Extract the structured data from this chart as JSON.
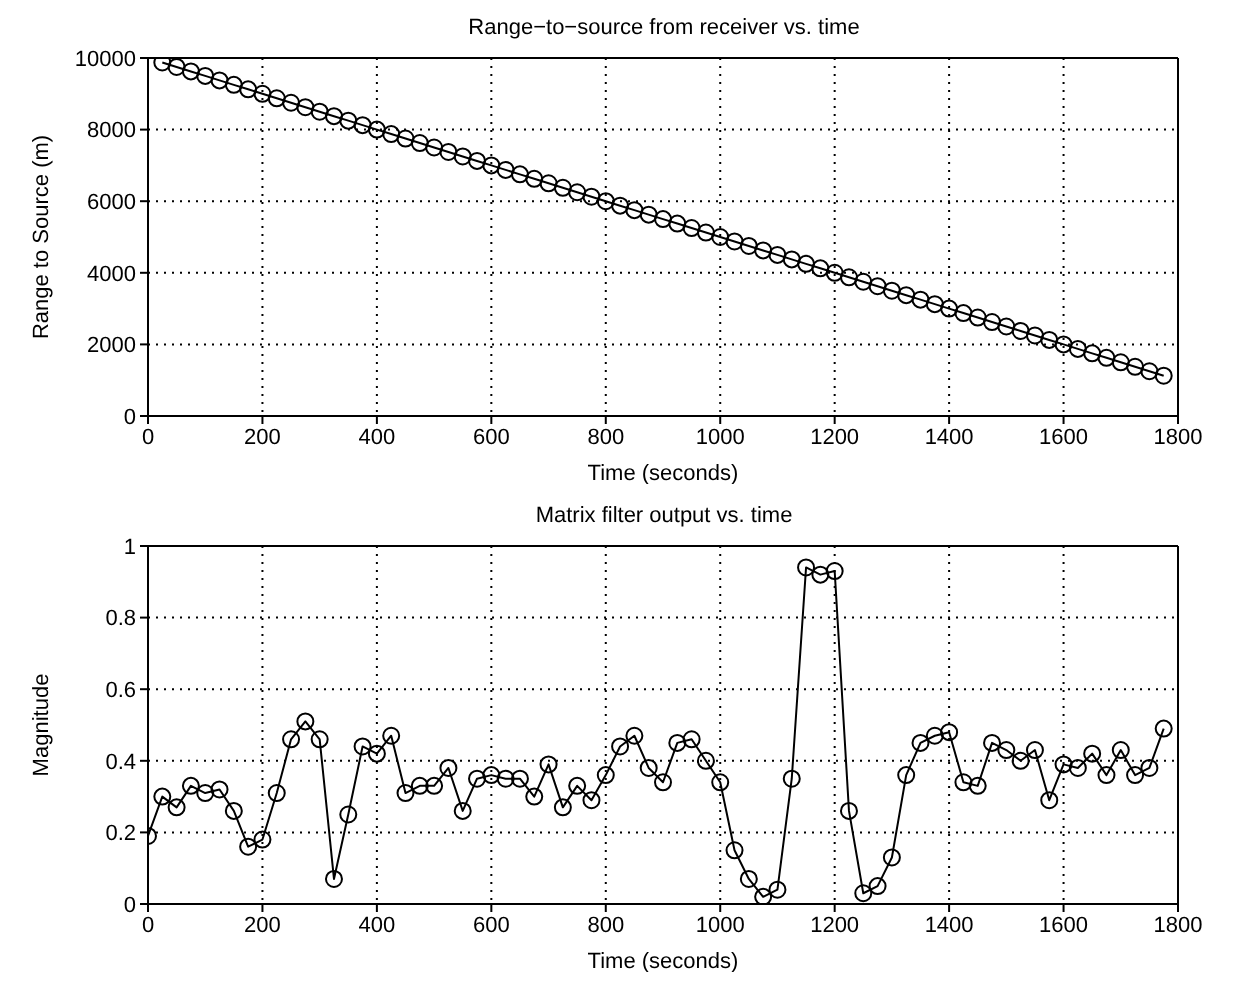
{
  "chart_data": [
    {
      "type": "line",
      "title": "Range−to−source from receiver vs. time",
      "xlabel": "Time (seconds)",
      "ylabel": "Range to Source (m)",
      "x": [
        25,
        50,
        75,
        100,
        125,
        150,
        175,
        200,
        225,
        250,
        275,
        300,
        325,
        350,
        375,
        400,
        425,
        450,
        475,
        500,
        525,
        550,
        575,
        600,
        625,
        650,
        675,
        700,
        725,
        750,
        775,
        800,
        825,
        850,
        875,
        900,
        925,
        950,
        975,
        1000,
        1025,
        1050,
        1075,
        1100,
        1125,
        1150,
        1175,
        1200,
        1225,
        1250,
        1275,
        1300,
        1325,
        1350,
        1375,
        1400,
        1425,
        1450,
        1475,
        1500,
        1525,
        1550,
        1575,
        1600,
        1625,
        1650,
        1675,
        1700,
        1725,
        1750,
        1775
      ],
      "series": [
        {
          "color": "#000000",
          "values": [
            9875,
            9750,
            9625,
            9500,
            9375,
            9250,
            9125,
            9000,
            8875,
            8750,
            8625,
            8500,
            8375,
            8250,
            8125,
            8000,
            7875,
            7750,
            7625,
            7500,
            7375,
            7250,
            7125,
            7000,
            6875,
            6750,
            6625,
            6500,
            6375,
            6250,
            6125,
            6000,
            5875,
            5750,
            5625,
            5500,
            5375,
            5250,
            5125,
            5000,
            4875,
            4750,
            4625,
            4500,
            4375,
            4250,
            4125,
            4000,
            3875,
            3750,
            3625,
            3500,
            3375,
            3250,
            3125,
            3000,
            2875,
            2750,
            2625,
            2500,
            2375,
            2250,
            2125,
            2000,
            1875,
            1750,
            1625,
            1500,
            1375,
            1250,
            1125
          ]
        }
      ],
      "xlim": [
        0,
        1800
      ],
      "xticks": [
        0,
        200,
        400,
        600,
        800,
        1000,
        1200,
        1400,
        1600,
        1800
      ],
      "ylim": [
        0,
        10000
      ],
      "yticks": [
        0,
        2000,
        4000,
        6000,
        8000,
        10000
      ],
      "grid": true,
      "marker": "circle",
      "line_style": "solid"
    },
    {
      "type": "line",
      "title": "Matrix filter output vs. time",
      "xlabel": "Time (seconds)",
      "ylabel": "Magnitude",
      "x": [
        0,
        25,
        50,
        75,
        100,
        125,
        150,
        175,
        200,
        225,
        250,
        275,
        300,
        325,
        350,
        375,
        400,
        425,
        450,
        475,
        500,
        525,
        550,
        575,
        600,
        625,
        650,
        675,
        700,
        725,
        750,
        775,
        800,
        825,
        850,
        875,
        900,
        925,
        950,
        975,
        1000,
        1025,
        1050,
        1075,
        1100,
        1125,
        1150,
        1175,
        1200,
        1225,
        1250,
        1275,
        1300,
        1325,
        1350,
        1375,
        1400,
        1425,
        1450,
        1475,
        1500,
        1525,
        1550,
        1575,
        1600,
        1625,
        1650,
        1675,
        1700,
        1725,
        1750,
        1775
      ],
      "series": [
        {
          "color": "#000000",
          "values": [
            0.19,
            0.3,
            0.27,
            0.33,
            0.31,
            0.32,
            0.26,
            0.16,
            0.18,
            0.31,
            0.46,
            0.51,
            0.46,
            0.07,
            0.25,
            0.44,
            0.42,
            0.47,
            0.31,
            0.33,
            0.33,
            0.38,
            0.26,
            0.35,
            0.36,
            0.35,
            0.35,
            0.3,
            0.39,
            0.27,
            0.33,
            0.29,
            0.36,
            0.44,
            0.47,
            0.38,
            0.34,
            0.45,
            0.46,
            0.4,
            0.34,
            0.15,
            0.07,
            0.02,
            0.04,
            0.35,
            0.94,
            0.92,
            0.93,
            0.26,
            0.03,
            0.05,
            0.13,
            0.36,
            0.45,
            0.47,
            0.48,
            0.34,
            0.33,
            0.45,
            0.43,
            0.4,
            0.43,
            0.29,
            0.39,
            0.38,
            0.42,
            0.36,
            0.43,
            0.36,
            0.38,
            0.49
          ]
        }
      ],
      "xlim": [
        0,
        1800
      ],
      "xticks": [
        0,
        200,
        400,
        600,
        800,
        1000,
        1200,
        1400,
        1600,
        1800
      ],
      "ylim": [
        0,
        1
      ],
      "yticks": [
        0,
        0.2,
        0.4,
        0.6,
        0.8,
        1
      ],
      "grid": true,
      "marker": "circle",
      "line_style": "solid"
    }
  ]
}
